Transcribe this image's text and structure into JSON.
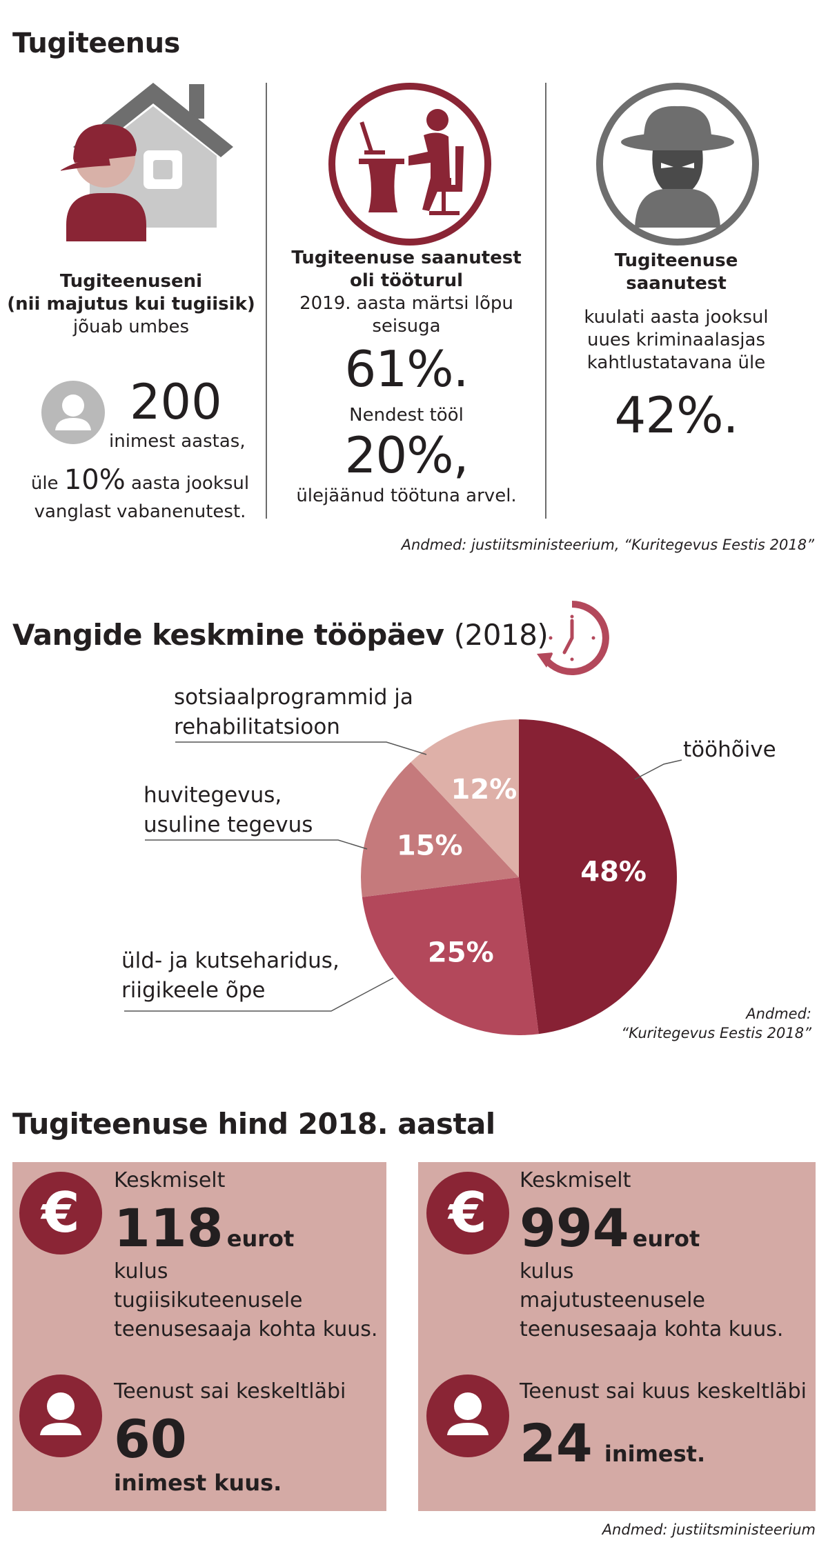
{
  "section1": {
    "title": "Tugiteenus",
    "col1": {
      "heading_line1": "Tugiteenuseni",
      "heading_line2": "(nii majutus kui tugiisik)",
      "subtext": "jõuab umbes",
      "number": "200",
      "number_unit": "inimest aastas,",
      "extra_prefix": "üle",
      "extra_value": "10%",
      "extra_suffix": "aasta jooksul",
      "extra_line2": "vanglast vabanenutest."
    },
    "col2": {
      "heading_line1": "Tugiteenuse saanutest",
      "heading_line2": "oli tööturul",
      "subtext_line1": "2019. aasta märtsi lõpu",
      "subtext_line2": "seisuga",
      "value1": "61%.",
      "mid_text": "Nendest tööl",
      "value2": "20%,",
      "tail_text": "ülejäänud töötuna arvel."
    },
    "col3": {
      "heading_line1": "Tugiteenuse",
      "heading_line2": "saanutest",
      "text_line1": "kuulati aasta jooksul",
      "text_line2": "uues kriminaalasjas",
      "text_line3": "kahtlustatavana üle",
      "value": "42%."
    },
    "source": "Andmed: justiitsministeerium, “Kuritegevus Eestis 2018”"
  },
  "section2": {
    "title": "Vangide keskmine tööpäev",
    "title_year": "(2018)",
    "source_line1": "Andmed:",
    "source_line2": "“Kuritegevus Eestis 2018”"
  },
  "chart_data": {
    "type": "pie",
    "slices": [
      {
        "label_line1": "tööhõive",
        "label_line2": "",
        "value": 48,
        "display": "48%",
        "color": "#872134"
      },
      {
        "label_line1": "üld- ja kutseharidus,",
        "label_line2": "riigikeele õpe",
        "value": 25,
        "display": "25%",
        "color": "#b3485b"
      },
      {
        "label_line1": "huvitegevus,",
        "label_line2": "usuline tegevus",
        "value": 15,
        "display": "15%",
        "color": "#c57a7c"
      },
      {
        "label_line1": "sotsiaalprogrammid ja",
        "label_line2": "rehabilitatsioon",
        "value": 12,
        "display": "12%",
        "color": "#deb0a8"
      }
    ]
  },
  "section3": {
    "title": "Tugiteenuse hind 2018. aastal",
    "box1": {
      "label": "Keskmiselt",
      "amount": "118",
      "currency": "eurot",
      "line1": "kulus",
      "line2": "tugiisikuteenusele",
      "line3": "teenusesaaja kohta kuus.",
      "people_label": "Teenust sai keskeltläbi",
      "people_number": "60",
      "people_unit": "inimest kuus."
    },
    "box2": {
      "label": "Keskmiselt",
      "amount": "994",
      "currency": "eurot",
      "line1": "kulus",
      "line2": "majutusteenusele",
      "line3": "teenusesaaja kohta kuus.",
      "people_label": "Teenust sai kuus keskeltläbi",
      "people_number": "24",
      "people_unit": "inimest."
    },
    "euro_symbol": "€",
    "source": "Andmed: justiitsministeerium"
  },
  "colors": {
    "accent": "#8a2535",
    "box": "#d4aaa5",
    "gray": "#7a7a7a"
  },
  "icons": [
    "house-person-icon",
    "worker-desk-icon",
    "spy-icon",
    "person-avatar-icon",
    "clock-icon",
    "euro-icon",
    "user-icon"
  ]
}
